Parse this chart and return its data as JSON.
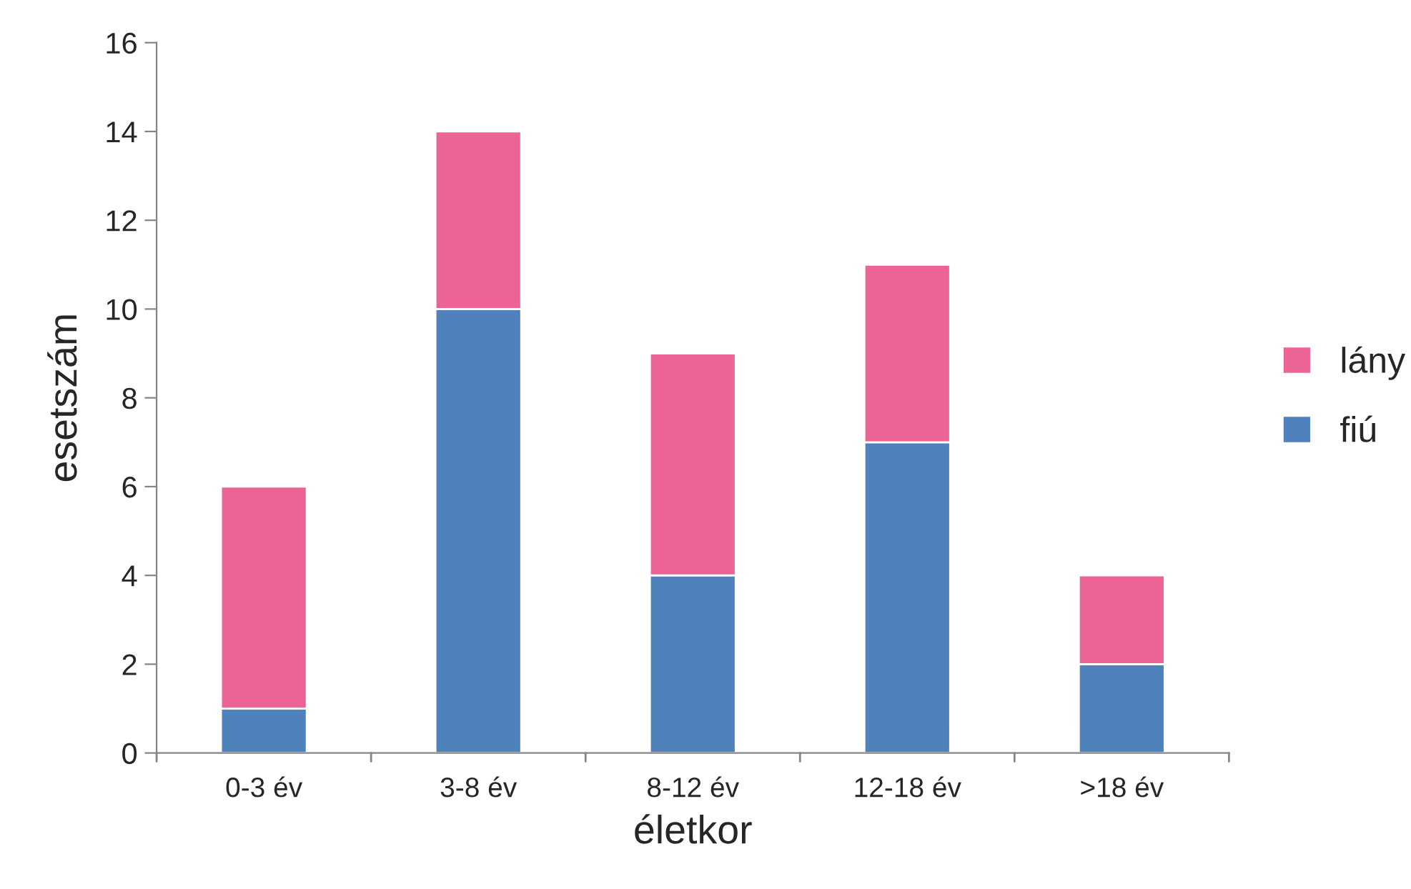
{
  "chart_data": {
    "type": "bar",
    "stacked": true,
    "xlabel": "életkor",
    "ylabel": "esetszám",
    "categories": [
      "0-3 év",
      "3-8 év",
      "8-12 év",
      "12-18 év",
      ">18 év"
    ],
    "series": [
      {
        "name": "fiú",
        "color": "#4f81bd",
        "values": [
          1,
          10,
          4,
          7,
          2
        ]
      },
      {
        "name": "lány",
        "color": "#ec6496",
        "values": [
          5,
          4,
          5,
          4,
          2
        ]
      }
    ],
    "ylim": [
      0,
      16
    ],
    "yticks": [
      0,
      2,
      4,
      6,
      8,
      10,
      12,
      14,
      16
    ],
    "grid": false,
    "legend": "right"
  }
}
